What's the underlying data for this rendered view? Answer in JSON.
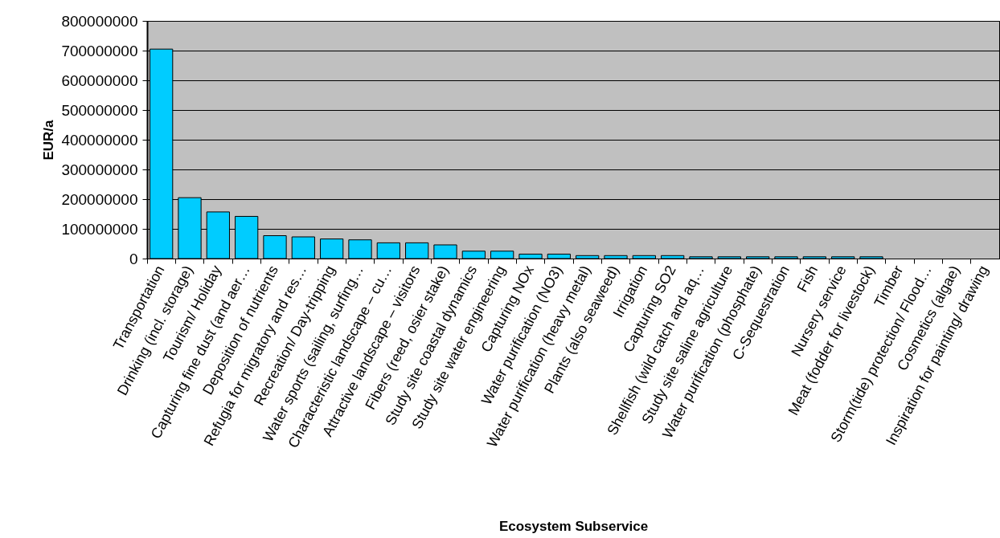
{
  "chart_data": {
    "type": "bar",
    "xlabel": "Ecosystem Subservice",
    "ylabel": "EUR/a",
    "categories": [
      "Transportation",
      "Drinking (incl. storage)",
      "Tourism/ Holiday",
      "Capturing fine dust (and aer…",
      "Deposition of nutrients",
      "Refugia for migratory and res…",
      "Recreation/ Day-tripping",
      "Water sports (sailing, surfing…",
      "Characteristic landscape – cu…",
      "Attractive landscape – visitors",
      "Fibers (reed, osier stake)",
      "Study site coastal dynamics",
      "Study site water engineering",
      "Capturing NOx",
      "Water purification (NO3)",
      "Water purification (heavy metal)",
      "Plants (also seaweed)",
      "Irrigation",
      "Capturing SO2",
      "Shellfish (wild catch and aq…",
      "Study site saline agriculture",
      "Water purification (phosphate)",
      "C-Sequestration",
      "Fish",
      "Nursery service",
      "Meat (fodder for livestock)",
      "Timber",
      "Storm(tide) protection/ Flood…",
      "Cosmetics (algae)",
      "Inspiration for painting/ drawing"
    ],
    "values": [
      705000000,
      205000000,
      157000000,
      142000000,
      77000000,
      73000000,
      66000000,
      63000000,
      53000000,
      53000000,
      46000000,
      25000000,
      25000000,
      15000000,
      15000000,
      10000000,
      10000000,
      10000000,
      10000000,
      6000000,
      6000000,
      6000000,
      6000000,
      6000000,
      6000000,
      6000000,
      0,
      0,
      0,
      0
    ],
    "color": "#00ccff",
    "ylim": [
      0,
      800000000
    ],
    "yticks": [
      0,
      100000000,
      200000000,
      300000000,
      400000000,
      500000000,
      600000000,
      700000000,
      800000000
    ],
    "grid": "y"
  }
}
